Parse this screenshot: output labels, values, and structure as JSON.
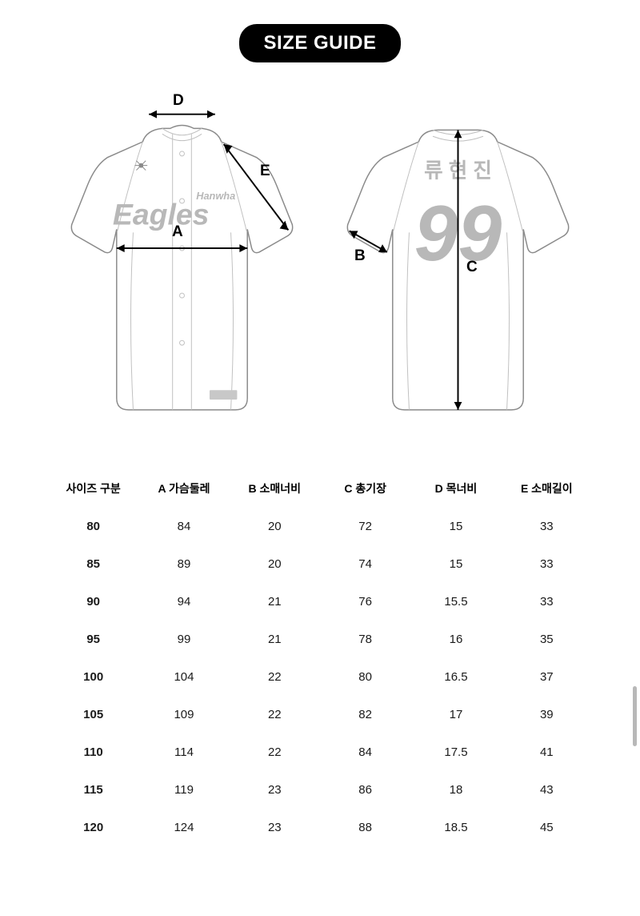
{
  "title": "SIZE GUIDE",
  "jersey": {
    "front_text_small": "Hanwha",
    "front_text_large": "Eagles",
    "back_name": "류 현 진",
    "back_number": "99"
  },
  "dims": {
    "A": "A",
    "B": "B",
    "C": "C",
    "D": "D",
    "E": "E"
  },
  "table": {
    "columns": [
      "사이즈 구분",
      "A 가슴둘레",
      "B 소매너비",
      "C 총기장",
      "D 목너비",
      "E 소매길이"
    ],
    "rows": [
      [
        "80",
        "84",
        "20",
        "72",
        "15",
        "33"
      ],
      [
        "85",
        "89",
        "20",
        "74",
        "15",
        "33"
      ],
      [
        "90",
        "94",
        "21",
        "76",
        "15.5",
        "33"
      ],
      [
        "95",
        "99",
        "21",
        "78",
        "16",
        "35"
      ],
      [
        "100",
        "104",
        "22",
        "80",
        "16.5",
        "37"
      ],
      [
        "105",
        "109",
        "22",
        "82",
        "17",
        "39"
      ],
      [
        "110",
        "114",
        "22",
        "84",
        "17.5",
        "41"
      ],
      [
        "115",
        "119",
        "23",
        "86",
        "18",
        "43"
      ],
      [
        "120",
        "124",
        "23",
        "88",
        "18.5",
        "45"
      ]
    ]
  },
  "style": {
    "bg": "#ffffff",
    "badge_bg": "#000000",
    "badge_fg": "#ffffff",
    "jersey_stroke": "#8a8a8a",
    "jersey_seam": "#c0c0c0",
    "jersey_logo_fill": "#b8b8b8",
    "text_color": "#000000",
    "scrollbar_color": "#b8b8b8"
  }
}
